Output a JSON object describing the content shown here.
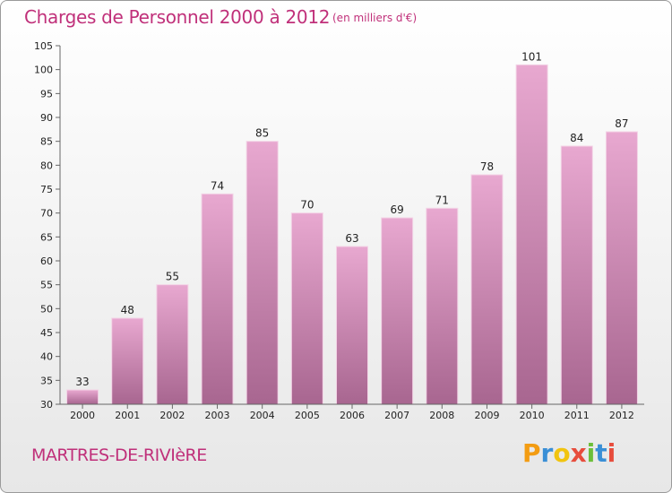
{
  "header": {
    "title": "Charges de Personnel 2000 à 2012",
    "unit": "(en milliers d'€)"
  },
  "footer": {
    "commune": "MARTRES-DE-RIVIèRE",
    "logo": {
      "letters": [
        "P",
        "r",
        "o",
        "x",
        "i",
        "t",
        "i"
      ],
      "colors": [
        "#f39c12",
        "#3a8fd6",
        "#f1c40f",
        "#e74c3c",
        "#6cbf3a",
        "#3a8fd6",
        "#e74c3c"
      ]
    }
  },
  "chart_data": {
    "type": "bar",
    "categories": [
      "2000",
      "2001",
      "2002",
      "2003",
      "2004",
      "2005",
      "2006",
      "2007",
      "2008",
      "2009",
      "2010",
      "2011",
      "2012"
    ],
    "values": [
      33,
      48,
      55,
      74,
      85,
      70,
      63,
      69,
      71,
      78,
      101,
      84,
      87
    ],
    "title": "Charges de Personnel 2000 à 2012",
    "subtitle": "(en milliers d'€)",
    "xlabel": "",
    "ylabel": "",
    "ylim": [
      30,
      105
    ],
    "yticks": [
      30,
      35,
      40,
      45,
      50,
      55,
      60,
      65,
      70,
      75,
      80,
      85,
      90,
      95,
      100,
      105
    ],
    "grid": false,
    "data_labels": true,
    "bar_color": "#d98fbd"
  }
}
